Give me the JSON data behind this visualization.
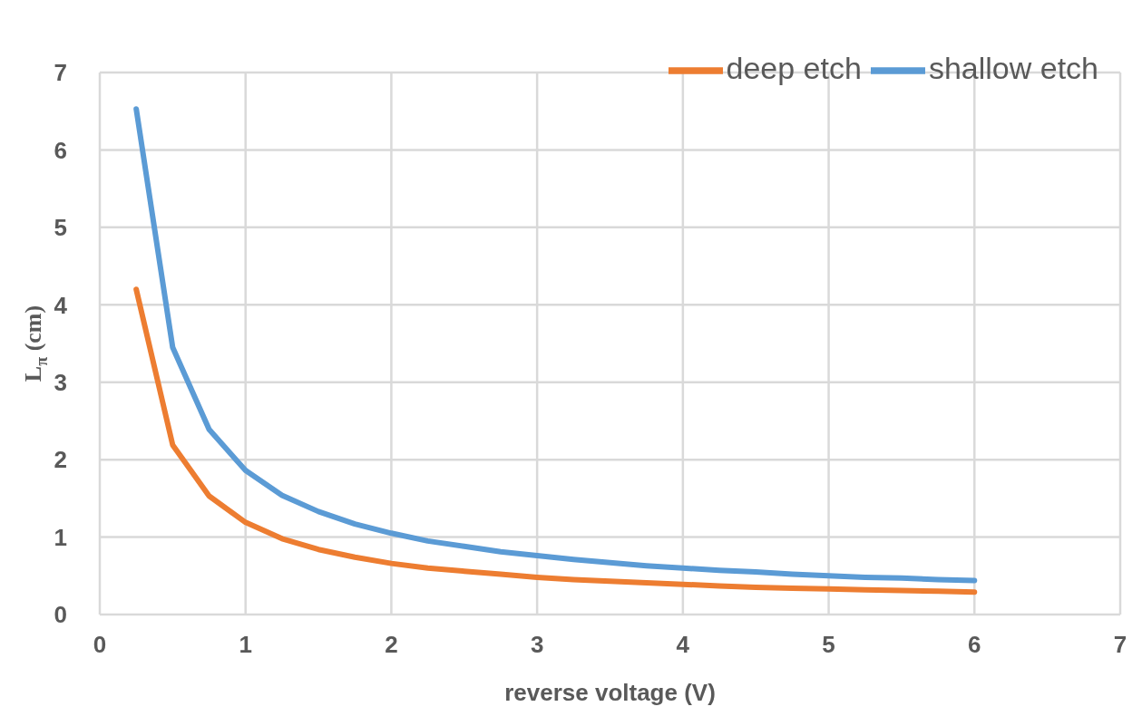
{
  "chart_data": {
    "type": "line",
    "xlabel": "reverse voltage (V)",
    "ylabel": "L$_{π}$ (cm)",
    "x": [
      0.25,
      0.5,
      0.75,
      1,
      1.25,
      1.5,
      1.75,
      2,
      2.25,
      2.5,
      2.75,
      3,
      3.25,
      3.5,
      3.75,
      4,
      4.25,
      4.5,
      4.75,
      5,
      5.25,
      5.5,
      5.75,
      6
    ],
    "series": [
      {
        "name": "shallow etch",
        "color": "#5b9bd5",
        "values": [
          6.53,
          3.45,
          2.39,
          1.86,
          1.54,
          1.33,
          1.17,
          1.05,
          0.95,
          0.88,
          0.81,
          0.76,
          0.71,
          0.67,
          0.63,
          0.6,
          0.57,
          0.55,
          0.52,
          0.5,
          0.48,
          0.47,
          0.45,
          0.44
        ]
      },
      {
        "name": "deep etch",
        "color": "#ed7d31",
        "values": [
          4.2,
          2.19,
          1.53,
          1.19,
          0.98,
          0.84,
          0.74,
          0.66,
          0.6,
          0.56,
          0.52,
          0.48,
          0.45,
          0.43,
          0.41,
          0.39,
          0.37,
          0.35,
          0.34,
          0.33,
          0.32,
          0.31,
          0.3,
          0.29
        ]
      }
    ],
    "xlim": [
      0,
      7
    ],
    "xticks": [
      0,
      1,
      2,
      3,
      4,
      5,
      6,
      7
    ],
    "ylim": [
      0,
      7
    ],
    "yticks": [
      0,
      1,
      2,
      3,
      4,
      5,
      6,
      7
    ],
    "grid": true,
    "legend": "top right",
    "marker": "none",
    "line_style": "solid"
  }
}
